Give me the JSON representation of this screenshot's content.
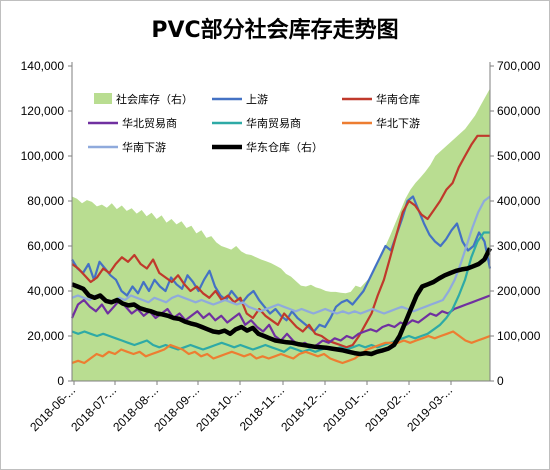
{
  "chart_data": {
    "type": "line",
    "title": "PVC部分社会库存走势图",
    "x_tick_labels": [
      "2018-06-...",
      "2018-07-...",
      "2018-08-...",
      "2018-09-...",
      "2018-10-...",
      "2018-11-...",
      "2018-12-...",
      "2019-01-...",
      "2019-02-...",
      "2019-03-..."
    ],
    "y_left": {
      "ticks": [
        "0",
        "20,000",
        "40,000",
        "60,000",
        "80,000",
        "100,000",
        "120,000",
        "140,000"
      ],
      "range": [
        0,
        140000
      ]
    },
    "y_right": {
      "ticks": [
        "0",
        "100,000",
        "200,000",
        "300,000",
        "400,000",
        "500,000",
        "600,000",
        "700,000"
      ],
      "range": [
        0,
        700000
      ]
    },
    "legend_position": "top",
    "series": [
      {
        "name": "社会库存（右）",
        "kind": "area",
        "axis": "right",
        "color": "#b9dd91",
        "values": [
          410000,
          405000,
          395000,
          402000,
          398000,
          388000,
          392000,
          385000,
          395000,
          382000,
          390000,
          378000,
          384000,
          372000,
          380000,
          366000,
          374000,
          360000,
          368000,
          352000,
          360000,
          348000,
          355000,
          340000,
          345000,
          328000,
          335000,
          318000,
          322000,
          308000,
          300000,
          296000,
          292000,
          300000,
          288000,
          282000,
          280000,
          275000,
          270000,
          266000,
          262000,
          256000,
          250000,
          238000,
          232000,
          222000,
          212000,
          210000,
          214000,
          208000,
          205000,
          200000,
          198000,
          198000,
          196000,
          195000,
          198000,
          212000,
          208000,
          220000,
          232000,
          250000,
          272000,
          300000,
          325000,
          352000,
          378000,
          405000,
          425000,
          440000,
          452000,
          465000,
          480000,
          500000,
          510000,
          520000,
          530000,
          540000,
          550000,
          560000,
          575000,
          590000,
          610000,
          630000,
          650000
        ]
      },
      {
        "name": "上游",
        "kind": "line",
        "axis": "left",
        "color": "#4472c4",
        "values": [
          54000,
          50000,
          48000,
          52000,
          45000,
          53000,
          50000,
          47000,
          45000,
          40000,
          38000,
          42000,
          39000,
          44000,
          40000,
          45000,
          42000,
          40000,
          46000,
          43000,
          41000,
          47000,
          44000,
          40000,
          45000,
          49000,
          42000,
          38000,
          36000,
          40000,
          37000,
          35000,
          38000,
          40000,
          36000,
          33000,
          30000,
          32000,
          29000,
          27000,
          31000,
          28000,
          26000,
          24000,
          22000,
          25000,
          24000,
          28000,
          33000,
          35000,
          36000,
          34000,
          37000,
          40000,
          45000,
          50000,
          55000,
          60000,
          58000,
          65000,
          72000,
          80000,
          82000,
          76000,
          70000,
          65000,
          62000,
          60000,
          63000,
          67000,
          70000,
          62000,
          58000,
          60000,
          66000,
          62000,
          50000
        ]
      },
      {
        "name": "华南仓库",
        "kind": "line",
        "axis": "left",
        "color": "#c0392b",
        "values": [
          52000,
          50000,
          47000,
          44000,
          46000,
          50000,
          48000,
          52000,
          55000,
          53000,
          56000,
          52000,
          50000,
          54000,
          48000,
          46000,
          44000,
          47000,
          43000,
          40000,
          42000,
          39000,
          37000,
          40000,
          36000,
          38000,
          35000,
          37000,
          30000,
          28000,
          32000,
          29000,
          27000,
          25000,
          30000,
          27000,
          24000,
          22000,
          25000,
          21000,
          20000,
          18000,
          17000,
          16000,
          15000,
          16000,
          20000,
          25000,
          30000,
          38000,
          45000,
          55000,
          65000,
          75000,
          80000,
          78000,
          74000,
          72000,
          76000,
          80000,
          85000,
          88000,
          95000,
          100000,
          105000,
          109000,
          109000,
          109000
        ]
      },
      {
        "name": "华北贸易商",
        "kind": "line",
        "axis": "left",
        "color": "#7030a0",
        "values": [
          28000,
          34000,
          36000,
          33000,
          31000,
          34000,
          30000,
          33000,
          36000,
          33000,
          30000,
          32000,
          29000,
          31000,
          28000,
          30000,
          32000,
          28000,
          30000,
          27000,
          29000,
          31000,
          28000,
          30000,
          27000,
          29000,
          26000,
          28000,
          30000,
          25000,
          27000,
          24000,
          22000,
          25000,
          20000,
          18000,
          21000,
          18000,
          16000,
          17000,
          15000,
          16000,
          18000,
          17000,
          19000,
          18000,
          20000,
          19000,
          21000,
          22000,
          23000,
          22000,
          24000,
          25000,
          24000,
          26000,
          25000,
          27000,
          26000,
          28000,
          30000,
          29000,
          31000,
          30000,
          32000,
          33000,
          34000,
          35000,
          36000,
          37000,
          38000
        ]
      },
      {
        "name": "华南贸易商",
        "kind": "line",
        "axis": "left",
        "color": "#2eaaa6",
        "values": [
          22000,
          21000,
          22000,
          21000,
          20000,
          21000,
          20000,
          19000,
          18000,
          17000,
          16000,
          17000,
          18000,
          16000,
          15000,
          16000,
          15000,
          14000,
          15000,
          16000,
          15000,
          14000,
          15000,
          16000,
          17000,
          16000,
          15000,
          16000,
          15000,
          14000,
          15000,
          16000,
          15000,
          14000,
          13000,
          15000,
          14000,
          13000,
          14000,
          13000,
          14000,
          15000,
          14000,
          15000,
          14000,
          15000,
          16000,
          15000,
          16000,
          15000,
          16000,
          17000,
          18000,
          19000,
          20000,
          19000,
          20000,
          21000,
          23000,
          25000,
          28000,
          32000,
          38000,
          45000,
          55000,
          62000,
          66000,
          66000
        ]
      },
      {
        "name": "华北下游",
        "kind": "line",
        "axis": "left",
        "color": "#ed7d31",
        "values": [
          8000,
          9000,
          8000,
          10000,
          12000,
          11000,
          13000,
          12000,
          14000,
          13000,
          12000,
          13000,
          11000,
          12000,
          13000,
          14000,
          16000,
          15000,
          14000,
          12000,
          13000,
          11000,
          12000,
          10000,
          11000,
          12000,
          13000,
          12000,
          11000,
          12000,
          10000,
          11000,
          10000,
          11000,
          12000,
          11000,
          10000,
          12000,
          13000,
          12000,
          11000,
          12000,
          10000,
          9000,
          8000,
          9000,
          10000,
          12000,
          14000,
          15000,
          16000,
          17000,
          17000,
          17000,
          18000,
          17000,
          18000,
          19000,
          20000,
          19000,
          20000,
          21000,
          22000,
          20000,
          18000,
          17000,
          18000,
          19000,
          20000
        ]
      },
      {
        "name": "华南下游",
        "kind": "line",
        "axis": "left",
        "color": "#8faadc",
        "values": [
          37000,
          38000,
          37000,
          36000,
          38000,
          37000,
          36000,
          35000,
          37000,
          36000,
          38000,
          37000,
          36000,
          35000,
          37000,
          36000,
          35000,
          37000,
          38000,
          37000,
          36000,
          35000,
          36000,
          35000,
          34000,
          35000,
          36000,
          35000,
          34000,
          35000,
          33000,
          32000,
          31000,
          32000,
          33000,
          34000,
          33000,
          32000,
          31000,
          32000,
          31000,
          30000,
          31000,
          32000,
          31000,
          30000,
          31000,
          30000,
          31000,
          30000,
          31000,
          32000,
          31000,
          30000,
          31000,
          32000,
          33000,
          32000,
          31000,
          32000,
          33000,
          34000,
          35000,
          36000,
          40000,
          45000,
          52000,
          60000,
          68000,
          75000,
          80000,
          82000
        ]
      },
      {
        "name": "华东仓库（右）",
        "kind": "line",
        "axis": "right",
        "color": "#000000",
        "bold": true,
        "values": [
          215000,
          210000,
          205000,
          190000,
          185000,
          190000,
          178000,
          175000,
          180000,
          172000,
          168000,
          170000,
          162000,
          158000,
          155000,
          150000,
          148000,
          145000,
          140000,
          138000,
          132000,
          128000,
          125000,
          120000,
          115000,
          110000,
          108000,
          112000,
          105000,
          115000,
          120000,
          112000,
          118000,
          105000,
          100000,
          95000,
          90000,
          88000,
          86000,
          85000,
          82000,
          80000,
          78000,
          76000,
          75000,
          74000,
          72000,
          70000,
          68000,
          65000,
          62000,
          60000,
          62000,
          60000,
          65000,
          68000,
          72000,
          80000,
          100000,
          130000,
          160000,
          190000,
          210000,
          215000,
          220000,
          228000,
          235000,
          240000,
          245000,
          248000,
          250000,
          255000,
          260000,
          270000,
          295000
        ]
      }
    ]
  }
}
